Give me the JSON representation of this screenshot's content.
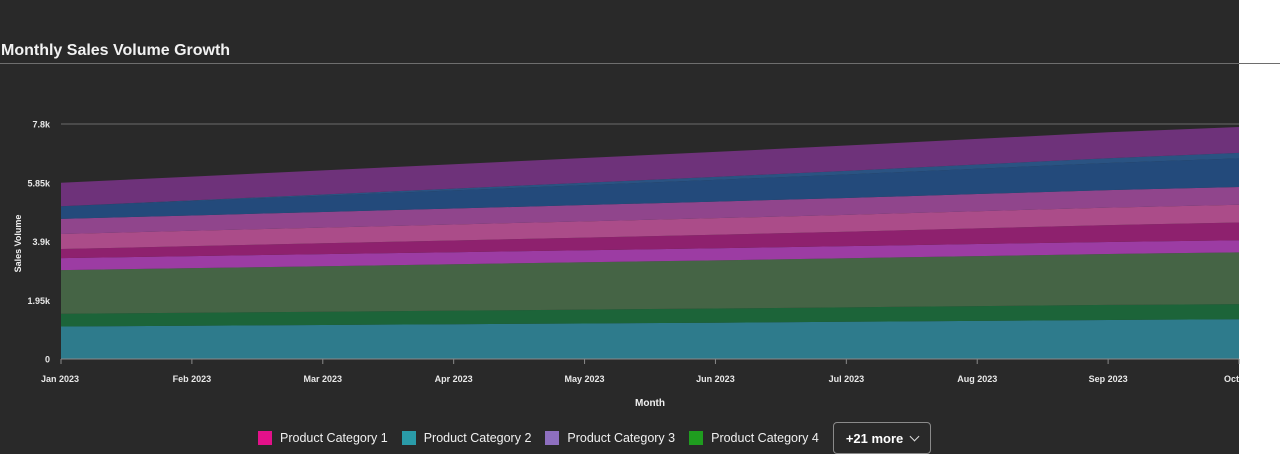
{
  "title": "Monthly Sales Volume Growth",
  "chart_data": {
    "type": "area",
    "stacked": true,
    "xlabel": "Month",
    "ylabel": "Sales Volume",
    "ylim": [
      0,
      7800
    ],
    "y_ticks": [
      "0",
      "1.95k",
      "3.9k",
      "5.85k",
      "7.8k"
    ],
    "y_tick_values": [
      0,
      1950,
      3900,
      5850,
      7800
    ],
    "x_tick_labels": [
      "Jan 2023",
      "Feb 2023",
      "Mar 2023",
      "Apr 2023",
      "May 2023",
      "Jun 2023",
      "Jul 2023",
      "Aug 2023",
      "Sep 2023",
      "Oct"
    ],
    "grid": "horizontal",
    "legend_position": "bottom",
    "series": [
      {
        "color": "#2f8a9e",
        "values": [
          1080,
          1105,
          1130,
          1155,
          1180,
          1205,
          1235,
          1265,
          1295,
          1320
        ]
      },
      {
        "color": "#1a6e3c",
        "values": [
          420,
          430,
          440,
          450,
          460,
          470,
          480,
          490,
          500,
          500
        ]
      },
      {
        "color": "#4a6e4a",
        "values": [
          1450,
          1480,
          1510,
          1540,
          1570,
          1600,
          1630,
          1660,
          1690,
          1720
        ]
      },
      {
        "color": "#b040b8",
        "values": [
          400,
          400,
          400,
          400,
          400,
          400,
          400,
          400,
          400,
          400
        ]
      },
      {
        "color": "#a0207a",
        "values": [
          300,
          330,
          360,
          390,
          420,
          450,
          480,
          520,
          560,
          590
        ]
      },
      {
        "color": "#c2529a",
        "values": [
          500,
          510,
          520,
          530,
          540,
          550,
          560,
          570,
          580,
          590
        ]
      },
      {
        "color": "#a24a9e",
        "values": [
          500,
          510,
          520,
          530,
          540,
          550,
          560,
          570,
          580,
          590
        ]
      },
      {
        "color": "#22508a",
        "values": [
          420,
          480,
          540,
          600,
          660,
          720,
          780,
          840,
          900,
          950
        ]
      },
      {
        "color": "#2a5a92",
        "values": [
          0,
          20,
          40,
          60,
          80,
          100,
          120,
          140,
          160,
          180
        ]
      },
      {
        "color": "#7a3488",
        "values": [
          780,
          790,
          800,
          810,
          820,
          830,
          840,
          850,
          860,
          860
        ]
      }
    ]
  },
  "legend": {
    "items": [
      {
        "label": "Product Category 1",
        "color": "#e3118a"
      },
      {
        "label": "Product Category 2",
        "color": "#2a9ba8"
      },
      {
        "label": "Product Category 3",
        "color": "#8e6fbf"
      },
      {
        "label": "Product Category 4",
        "color": "#1f9d1f"
      }
    ],
    "more_label": "+21 more"
  }
}
